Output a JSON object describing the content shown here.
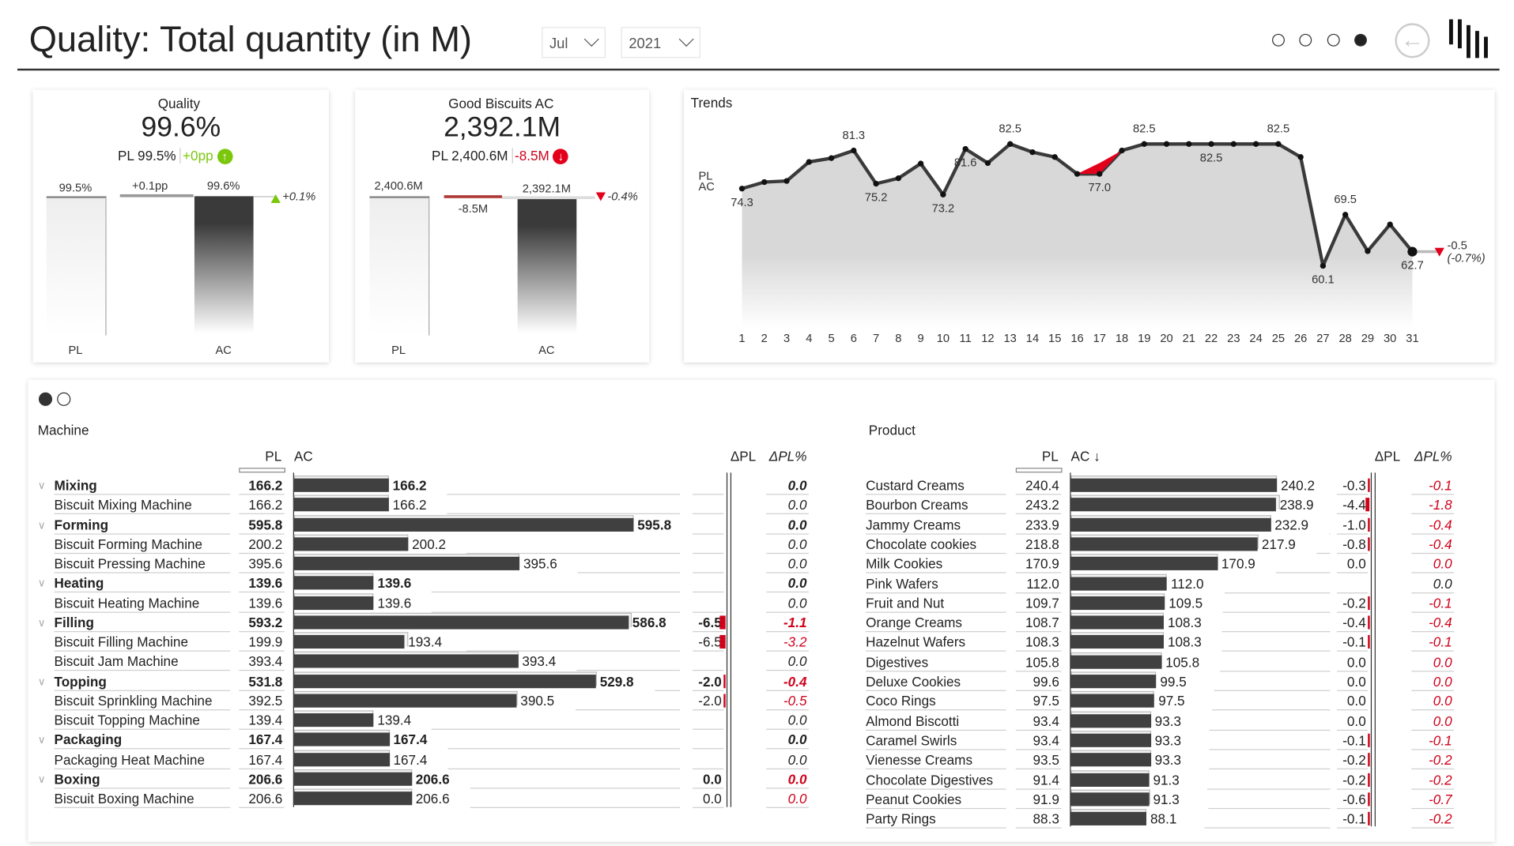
{
  "header": {
    "title": "Quality: Total quantity (in M)",
    "month": "Jul",
    "year": "2021",
    "pages": 4,
    "active_page": 4
  },
  "kpi_quality": {
    "title": "Quality",
    "value": "99.6%",
    "pl_label": "PL",
    "pl_value": "99.5%",
    "delta": "+0pp",
    "bar_pl_label": "99.5%",
    "bar_delta_label": "+0.1pp",
    "bar_ac_label": "99.6%",
    "delta_pct": "+0.1%",
    "axis_pl": "PL",
    "axis_ac": "AC",
    "color": "#7ac70c"
  },
  "kpi_good": {
    "title": "Good Biscuits AC",
    "value": "2,392.1M",
    "pl_label": "PL",
    "pl_value": "2,400.6M",
    "delta": "-8.5M",
    "bar_pl_label": "2,400.6M",
    "bar_delta_label": "-8.5M",
    "bar_ac_label": "2,392.1M",
    "delta_pct": "-0.4%",
    "axis_pl": "PL",
    "axis_ac": "AC",
    "color": "#d0021b"
  },
  "trends": {
    "title": "Trends",
    "legend_pl": "PL",
    "legend_ac": "AC",
    "end_delta": "-0.5",
    "end_delta_pct": "(-0.7%)"
  },
  "chart_data": {
    "type": "line",
    "title": "Trends",
    "x": [
      1,
      2,
      3,
      4,
      5,
      6,
      7,
      8,
      9,
      10,
      11,
      12,
      13,
      14,
      15,
      16,
      17,
      18,
      19,
      20,
      21,
      22,
      23,
      24,
      25,
      26,
      27,
      28,
      29,
      30,
      31
    ],
    "series": [
      {
        "name": "AC",
        "values": [
          74.3,
          75.5,
          75.7,
          79.2,
          79.9,
          81.3,
          75.2,
          76.2,
          78.9,
          73.2,
          81.6,
          79.0,
          82.5,
          81.0,
          80.1,
          77.0,
          77.0,
          81.3,
          82.5,
          82.5,
          82.5,
          82.5,
          82.5,
          82.5,
          82.5,
          80.1,
          60.1,
          69.5,
          62.8,
          67.7,
          62.7
        ]
      }
    ],
    "data_labels": {
      "1": "74.3",
      "6": "81.3",
      "7": "75.2",
      "10": "73.2",
      "11": "81.6",
      "13": "82.5",
      "17": "77.0",
      "19": "82.5",
      "22": "82.5",
      "25": "82.5",
      "27": "60.1",
      "28": "69.5",
      "31": "62.7"
    },
    "ylim": [
      55,
      85
    ]
  },
  "panel_dots": 2,
  "machine": {
    "title": "Machine",
    "col_pl": "PL",
    "col_ac": "AC",
    "col_dpl": "ΔPL",
    "col_dplp": "ΔPL%",
    "rows": [
      {
        "name": "Mixing",
        "group": true,
        "pl": "166.2",
        "ac": "166.2",
        "dpl": "",
        "dplp": "0.0",
        "neg": false
      },
      {
        "name": "Biscuit Mixing Machine",
        "group": false,
        "pl": "166.2",
        "ac": "166.2",
        "dpl": "",
        "dplp": "0.0",
        "neg": false
      },
      {
        "name": "Forming",
        "group": true,
        "pl": "595.8",
        "ac": "595.8",
        "dpl": "",
        "dplp": "0.0",
        "neg": false
      },
      {
        "name": "Biscuit Forming Machine",
        "group": false,
        "pl": "200.2",
        "ac": "200.2",
        "dpl": "",
        "dplp": "0.0",
        "neg": false
      },
      {
        "name": "Biscuit Pressing Machine",
        "group": false,
        "pl": "395.6",
        "ac": "395.6",
        "dpl": "",
        "dplp": "0.0",
        "neg": false
      },
      {
        "name": "Heating",
        "group": true,
        "pl": "139.6",
        "ac": "139.6",
        "dpl": "",
        "dplp": "0.0",
        "neg": false
      },
      {
        "name": "Biscuit Heating Machine",
        "group": false,
        "pl": "139.6",
        "ac": "139.6",
        "dpl": "",
        "dplp": "0.0",
        "neg": false
      },
      {
        "name": "Filling",
        "group": true,
        "pl": "593.2",
        "ac": "586.8",
        "dpl": "-6.5",
        "dplp": "-1.1",
        "neg": true
      },
      {
        "name": "Biscuit Filling Machine",
        "group": false,
        "pl": "199.9",
        "ac": "193.4",
        "dpl": "-6.5",
        "dplp": "-3.2",
        "neg": true
      },
      {
        "name": "Biscuit Jam Machine",
        "group": false,
        "pl": "393.4",
        "ac": "393.4",
        "dpl": "",
        "dplp": "0.0",
        "neg": false
      },
      {
        "name": "Topping",
        "group": true,
        "pl": "531.8",
        "ac": "529.8",
        "dpl": "-2.0",
        "dplp": "-0.4",
        "neg": true
      },
      {
        "name": "Biscuit Sprinkling Machine",
        "group": false,
        "pl": "392.5",
        "ac": "390.5",
        "dpl": "-2.0",
        "dplp": "-0.5",
        "neg": true
      },
      {
        "name": "Biscuit Topping Machine",
        "group": false,
        "pl": "139.4",
        "ac": "139.4",
        "dpl": "",
        "dplp": "0.0",
        "neg": false
      },
      {
        "name": "Packaging",
        "group": true,
        "pl": "167.4",
        "ac": "167.4",
        "dpl": "",
        "dplp": "0.0",
        "neg": false
      },
      {
        "name": "Packaging Heat Machine",
        "group": false,
        "pl": "167.4",
        "ac": "167.4",
        "dpl": "",
        "dplp": "0.0",
        "neg": false
      },
      {
        "name": "Boxing",
        "group": true,
        "pl": "206.6",
        "ac": "206.6",
        "dpl": "0.0",
        "dplp": "0.0",
        "neg": true
      },
      {
        "name": "Biscuit Boxing Machine",
        "group": false,
        "pl": "206.6",
        "ac": "206.6",
        "dpl": "0.0",
        "dplp": "0.0",
        "neg": true
      }
    ]
  },
  "product": {
    "title": "Product",
    "col_pl": "PL",
    "col_ac": "AC ↓",
    "col_dpl": "ΔPL",
    "col_dplp": "ΔPL%",
    "rows": [
      {
        "name": "Custard Creams",
        "pl": "240.4",
        "ac": "240.2",
        "dpl": "-0.3",
        "dplp": "-0.1",
        "neg": true
      },
      {
        "name": "Bourbon Creams",
        "pl": "243.2",
        "ac": "238.9",
        "dpl": "-4.4",
        "dplp": "-1.8",
        "neg": true
      },
      {
        "name": "Jammy Creams",
        "pl": "233.9",
        "ac": "232.9",
        "dpl": "-1.0",
        "dplp": "-0.4",
        "neg": true
      },
      {
        "name": "Chocolate cookies",
        "pl": "218.8",
        "ac": "217.9",
        "dpl": "-0.8",
        "dplp": "-0.4",
        "neg": true
      },
      {
        "name": "Milk Cookies",
        "pl": "170.9",
        "ac": "170.9",
        "dpl": "0.0",
        "dplp": "0.0",
        "neg": true
      },
      {
        "name": "Pink Wafers",
        "pl": "112.0",
        "ac": "112.0",
        "dpl": "",
        "dplp": "0.0",
        "neg": false
      },
      {
        "name": "Fruit and Nut",
        "pl": "109.7",
        "ac": "109.5",
        "dpl": "-0.2",
        "dplp": "-0.1",
        "neg": true
      },
      {
        "name": "Orange Creams",
        "pl": "108.7",
        "ac": "108.3",
        "dpl": "-0.4",
        "dplp": "-0.4",
        "neg": true
      },
      {
        "name": "Hazelnut Wafers",
        "pl": "108.3",
        "ac": "108.3",
        "dpl": "-0.1",
        "dplp": "-0.1",
        "neg": true
      },
      {
        "name": "Digestives",
        "pl": "105.8",
        "ac": "105.8",
        "dpl": "0.0",
        "dplp": "0.0",
        "neg": true
      },
      {
        "name": "Deluxe Cookies",
        "pl": "99.6",
        "ac": "99.5",
        "dpl": "0.0",
        "dplp": "0.0",
        "neg": true
      },
      {
        "name": "Coco Rings",
        "pl": "97.5",
        "ac": "97.5",
        "dpl": "0.0",
        "dplp": "0.0",
        "neg": true
      },
      {
        "name": "Almond Biscotti",
        "pl": "93.4",
        "ac": "93.3",
        "dpl": "0.0",
        "dplp": "0.0",
        "neg": true
      },
      {
        "name": "Caramel Swirls",
        "pl": "93.4",
        "ac": "93.3",
        "dpl": "-0.1",
        "dplp": "-0.1",
        "neg": true
      },
      {
        "name": "Vienesse Creams",
        "pl": "93.5",
        "ac": "93.3",
        "dpl": "-0.2",
        "dplp": "-0.2",
        "neg": true
      },
      {
        "name": "Chocolate Digestives",
        "pl": "91.4",
        "ac": "91.3",
        "dpl": "-0.2",
        "dplp": "-0.2",
        "neg": true
      },
      {
        "name": "Peanut Cookies",
        "pl": "91.9",
        "ac": "91.3",
        "dpl": "-0.6",
        "dplp": "-0.7",
        "neg": true
      },
      {
        "name": "Party Rings",
        "pl": "88.3",
        "ac": "88.1",
        "dpl": "-0.1",
        "dplp": "-0.2",
        "neg": true
      }
    ]
  }
}
